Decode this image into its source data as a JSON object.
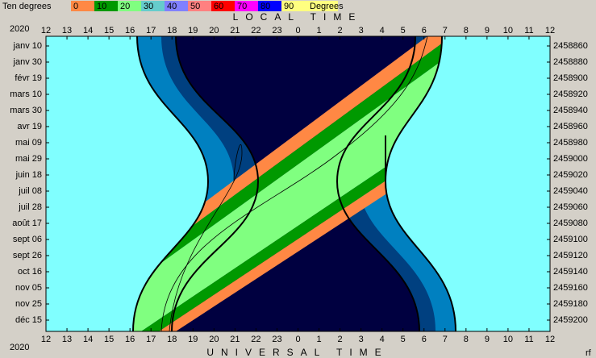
{
  "legend": {
    "title": "Ten degrees",
    "unit": "Degrees",
    "levels": [
      {
        "label": "0",
        "color": "#ff8844"
      },
      {
        "label": "10",
        "color": "#009900"
      },
      {
        "label": "20",
        "color": "#80ff80"
      },
      {
        "label": "30",
        "color": "#66cccc"
      },
      {
        "label": "40",
        "color": "#8080ff"
      },
      {
        "label": "50",
        "color": "#ff8080"
      },
      {
        "label": "60",
        "color": "#ff0000"
      },
      {
        "label": "70",
        "color": "#ff00ff"
      },
      {
        "label": "80",
        "color": "#0000ff"
      },
      {
        "label": "90",
        "color": "#ffff80"
      }
    ]
  },
  "chart_data": {
    "type": "sky-chart",
    "title": "LOCAL TIME",
    "x_label": "UNIVERSAL TIME",
    "year": "2020",
    "credit": "rf",
    "xlim": [
      12,
      36
    ],
    "xticks": [
      12,
      13,
      14,
      15,
      16,
      17,
      18,
      19,
      20,
      21,
      22,
      23,
      {
        "value": 24,
        "label": "0"
      },
      {
        "value": 25,
        "label": "1"
      },
      {
        "value": 26,
        "label": "2"
      },
      {
        "value": 27,
        "label": "3"
      },
      {
        "value": 28,
        "label": "4"
      },
      {
        "value": 29,
        "label": "5"
      },
      {
        "value": 30,
        "label": "6"
      },
      {
        "value": 31,
        "label": "7"
      },
      {
        "value": 32,
        "label": "8"
      },
      {
        "value": 33,
        "label": "9"
      },
      {
        "value": 34,
        "label": "10"
      },
      {
        "value": 35,
        "label": "11"
      },
      {
        "value": 36,
        "label": "12"
      }
    ],
    "ylim": [
      2458848,
      2459214
    ],
    "yticks": [
      {
        "value": 2458860,
        "label": "janv 10"
      },
      {
        "value": 2458880,
        "label": "janv 30"
      },
      {
        "value": 2458900,
        "label": "févr 19"
      },
      {
        "value": 2458920,
        "label": "mars 10"
      },
      {
        "value": 2458940,
        "label": "mars 30"
      },
      {
        "value": 2458960,
        "label": "avr 19"
      },
      {
        "value": 2458980,
        "label": "mai 09"
      },
      {
        "value": 2459000,
        "label": "mai 29"
      },
      {
        "value": 2459020,
        "label": "juin 18"
      },
      {
        "value": 2459040,
        "label": "juil 08"
      },
      {
        "value": 2459060,
        "label": "juil 28"
      },
      {
        "value": 2459080,
        "label": "août 17"
      },
      {
        "value": 2459100,
        "label": "sept 06"
      },
      {
        "value": 2459120,
        "label": "sept 26"
      },
      {
        "value": 2459140,
        "label": "oct 16"
      },
      {
        "value": 2459160,
        "label": "nov 05"
      },
      {
        "value": 2459180,
        "label": "nov 25"
      },
      {
        "value": 2459200,
        "label": "déc 15"
      }
    ],
    "y2ticks": [
      2458860,
      2458880,
      2458900,
      2458920,
      2458940,
      2458960,
      2458980,
      2459000,
      2459020,
      2459040,
      2459060,
      2459080,
      2459100,
      2459120,
      2459140,
      2459160,
      2459180,
      2459200
    ]
  }
}
